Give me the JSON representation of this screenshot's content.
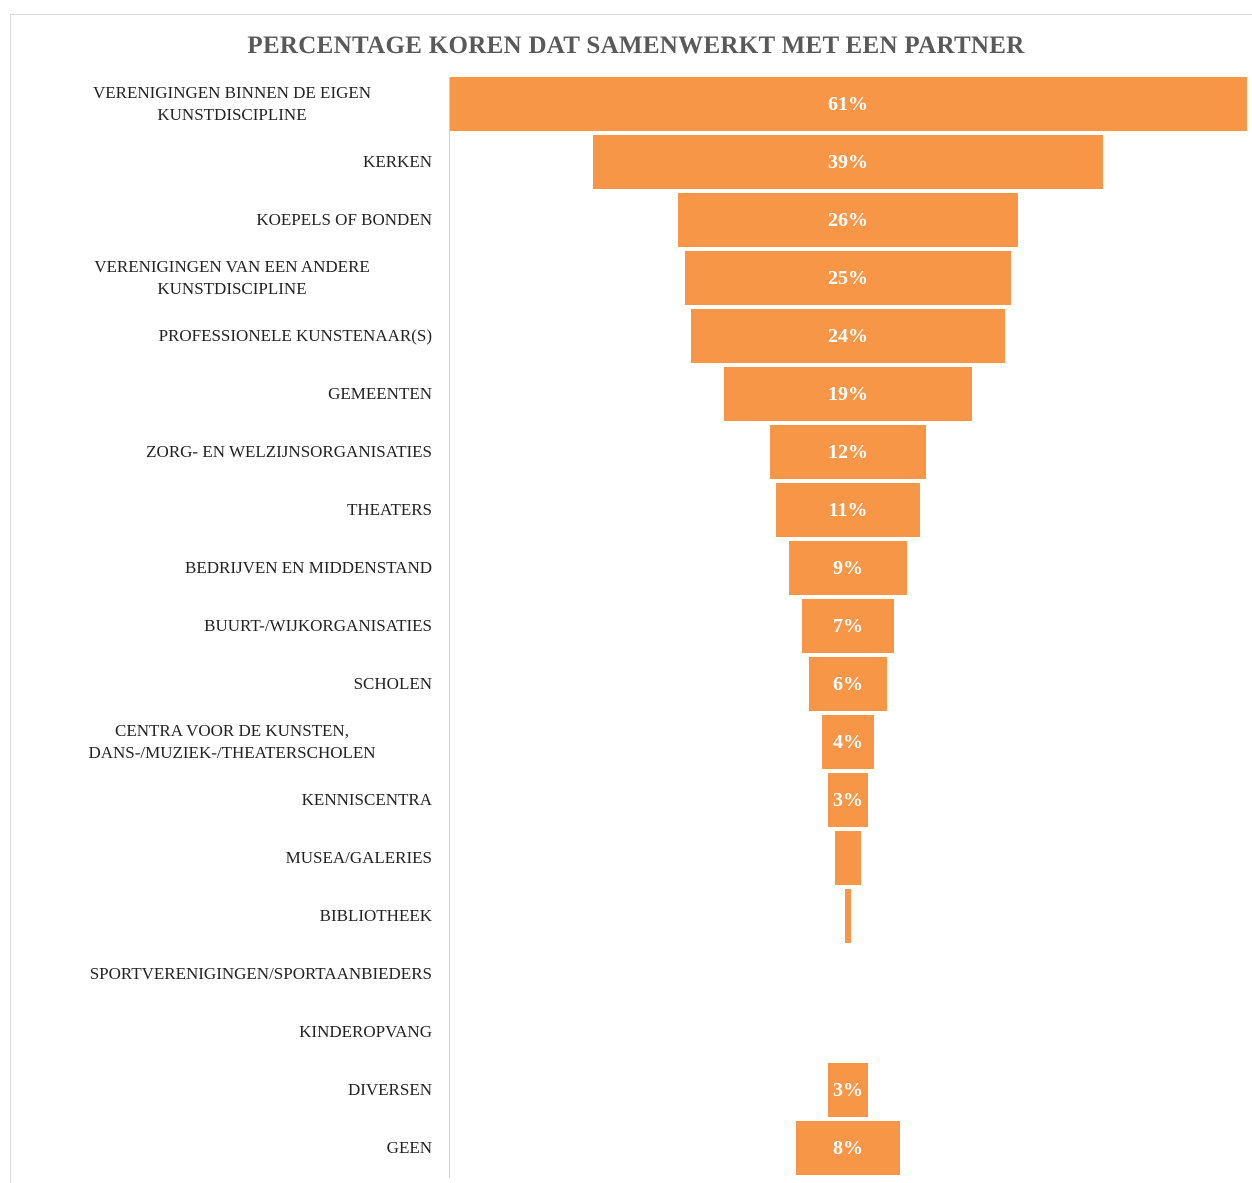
{
  "chart_data": {
    "type": "funnel",
    "title": "PERCENTAGE KOREN DAT SAMENWERKT MET EEN PARTNER",
    "categories": [
      "VERENIGINGEN BINNEN DE EIGEN KUNSTDISCIPLINE",
      "KERKEN",
      "KOEPELS OF BONDEN",
      "VERENIGINGEN VAN EEN ANDERE KUNSTDISCIPLINE",
      "PROFESSIONELE KUNSTENAAR(S)",
      "GEMEENTEN",
      "ZORG- EN WELZIJNSORGANISATIES",
      "THEATERS",
      "BEDRIJVEN EN MIDDENSTAND",
      "BUURT-/WIJKORGANISATIES",
      "SCHOLEN",
      "CENTRA VOOR DE KUNSTEN, DANS-/MUZIEK-/THEATERSCHOLEN",
      "KENNISCENTRA",
      "MUSEA/GALERIES",
      "BIBLIOTHEEK",
      "SPORTVERENIGINGEN/SPORTAANBIEDERS",
      "KINDEROPVANG",
      "DIVERSEN",
      "GEEN"
    ],
    "values": [
      61,
      39,
      26,
      25,
      24,
      19,
      12,
      11,
      9,
      7,
      6,
      4,
      3,
      2,
      0.5,
      0,
      0,
      3,
      8
    ],
    "value_labels": [
      "61%",
      "39%",
      "26%",
      "25%",
      "24%",
      "19%",
      "12%",
      "11%",
      "9%",
      "7%",
      "6%",
      "4%",
      "3%",
      null,
      null,
      null,
      null,
      "3%",
      "8%"
    ],
    "color": "#f79646"
  }
}
